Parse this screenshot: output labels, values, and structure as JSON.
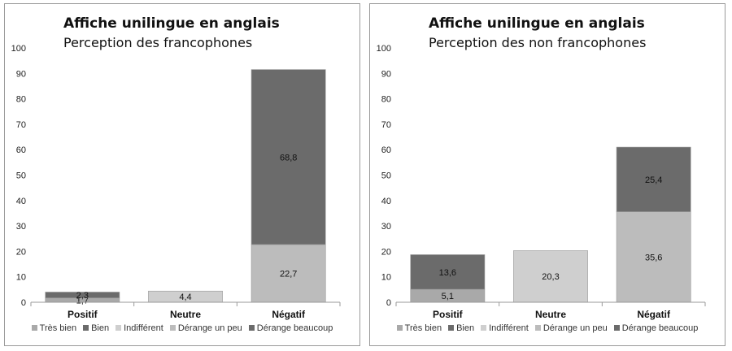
{
  "colors": {
    "tres_bien": "#a9a9a9",
    "bien": "#6b6b6b",
    "indifferent": "#cfcfcf",
    "derange_un_peu": "#bcbcbc",
    "derange_beaucoup": "#6b6b6b"
  },
  "chart_data": [
    {
      "type": "bar",
      "stacked": true,
      "title": "Affiche unilingue en anglais",
      "subtitle": "Perception des francophones",
      "categories": [
        "Positif",
        "Neutre",
        "Négatif"
      ],
      "ylim": [
        0,
        100
      ],
      "yticks": [
        "0",
        "10",
        "20",
        "30",
        "40",
        "50",
        "60",
        "70",
        "80",
        "90",
        "100"
      ],
      "grid": false,
      "legend_position": "bottom",
      "series": [
        {
          "name": "Très bien",
          "color_key": "tres_bien",
          "values": [
            1.7,
            0,
            0
          ],
          "labels": [
            "1,7",
            "",
            ""
          ]
        },
        {
          "name": "Bien",
          "color_key": "bien",
          "values": [
            2.3,
            0,
            0
          ],
          "labels": [
            "2,3",
            "",
            ""
          ]
        },
        {
          "name": "Indifférent",
          "color_key": "indifferent",
          "values": [
            0,
            4.4,
            0
          ],
          "labels": [
            "",
            "4,4",
            ""
          ]
        },
        {
          "name": "Dérange un peu",
          "color_key": "derange_un_peu",
          "values": [
            0,
            0,
            22.7
          ],
          "labels": [
            "",
            "",
            "22,7"
          ]
        },
        {
          "name": "Dérange beaucoup",
          "color_key": "derange_beaucoup",
          "values": [
            0,
            0,
            68.8
          ],
          "labels": [
            "",
            "",
            "68,8"
          ]
        }
      ]
    },
    {
      "type": "bar",
      "stacked": true,
      "title": "Affiche unilingue en anglais",
      "subtitle": "Perception des non francophones",
      "categories": [
        "Positif",
        "Neutre",
        "Négatif"
      ],
      "ylim": [
        0,
        100
      ],
      "yticks": [
        "0",
        "10",
        "20",
        "30",
        "40",
        "50",
        "60",
        "70",
        "80",
        "90",
        "100"
      ],
      "grid": false,
      "legend_position": "bottom",
      "series": [
        {
          "name": "Très bien",
          "color_key": "tres_bien",
          "values": [
            5.1,
            0,
            0
          ],
          "labels": [
            "5,1",
            "",
            ""
          ]
        },
        {
          "name": "Bien",
          "color_key": "bien",
          "values": [
            13.6,
            0,
            0
          ],
          "labels": [
            "13,6",
            "",
            ""
          ]
        },
        {
          "name": "Indifférent",
          "color_key": "indifferent",
          "values": [
            0,
            20.3,
            0
          ],
          "labels": [
            "",
            "20,3",
            ""
          ]
        },
        {
          "name": "Dérange un peu",
          "color_key": "derange_un_peu",
          "values": [
            0,
            0,
            35.6
          ],
          "labels": [
            "",
            "",
            "35,6"
          ]
        },
        {
          "name": "Dérange beaucoup",
          "color_key": "derange_beaucoup",
          "values": [
            0,
            0,
            25.4
          ],
          "labels": [
            "",
            "",
            "25,4"
          ]
        }
      ]
    }
  ]
}
